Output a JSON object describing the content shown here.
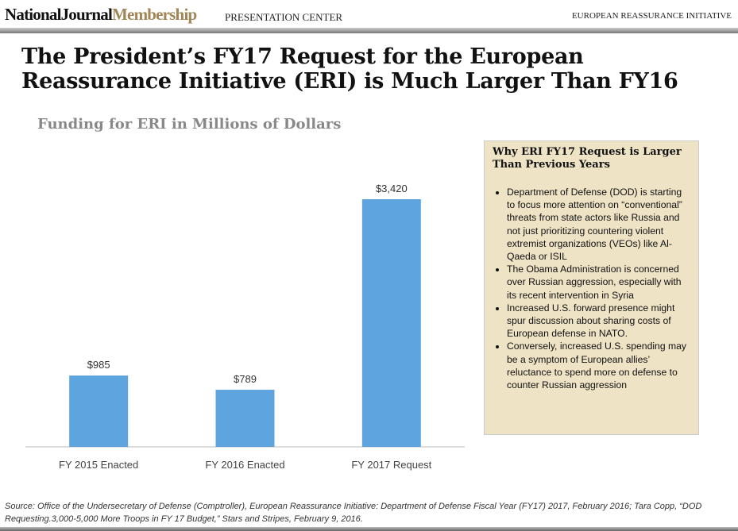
{
  "header": {
    "logo_left": "NationalJournal",
    "logo_right": "Membership",
    "section": "PRESENTATION CENTER",
    "topic": "EUROPEAN REASSURANCE INITIATIVE"
  },
  "title_line1": "The President’s FY17 Request for the European",
  "title_line2": "Reassurance Initiative (ERI) is Much Larger Than FY16",
  "chart_data": {
    "type": "bar",
    "title": "Funding for ERI in Millions of Dollars",
    "categories": [
      "FY 2015 Enacted",
      "FY 2016 Enacted",
      "FY 2017 Request"
    ],
    "values": [
      985,
      789,
      3420
    ],
    "data_labels": [
      "$985",
      "$789",
      "$3,420"
    ],
    "ylim": [
      0,
      3420
    ],
    "grid": false,
    "bar_color": "#5ea5e0"
  },
  "panel": {
    "heading": "Why ERI FY17 Request is Larger Than Previous Years",
    "bullets": [
      "Department of Defense (DOD) is starting to focus more attention on “conventional” threats from state actors like Russia and not just prioritizing countering violent extremist organizations (VEOs) like Al-Qaeda or ISIL",
      "The Obama Administration is concerned over Russian aggression, especially with its recent intervention in Syria",
      "Increased U.S. forward presence might spur discussion about sharing costs of European defense in NATO.",
      "Conversely, increased U.S. spending may be a symptom of European allies’ reluctance to spend more on defense to counter Russian aggression"
    ]
  },
  "source": "Source: Office of the Undersecretary of Defense (Comptroller), European Reassurance Initiative: Department of Defense Fiscal Year (FY17) 2017, February 2016; Tara Copp, “DOD Requesting.3,000-5,000 More Troops in FY 17 Budget,” Stars and Stripes, February 9, 2016."
}
